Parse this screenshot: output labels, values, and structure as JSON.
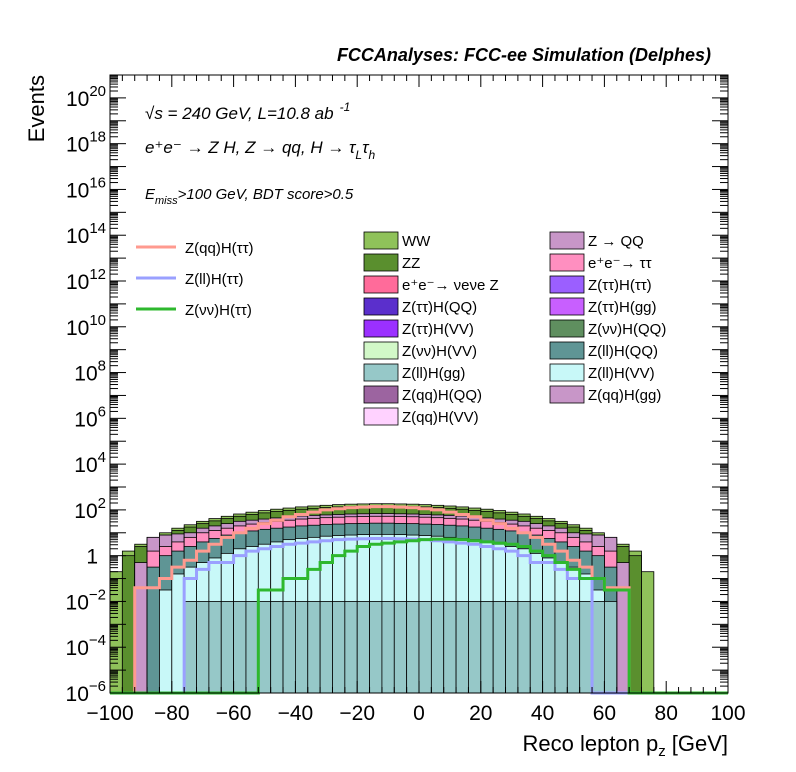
{
  "chart_data": {
    "type": "histogram",
    "title": "FCCAnalyses: FCC-ee Simulation (Delphes)",
    "xlabel": "Reco lepton p",
    "xlabel_sub": "z",
    "xlabel_unit": "[GeV]",
    "ylabel": "Events",
    "xlim": [
      -100,
      100
    ],
    "ylim": [
      1e-06,
      1e+21
    ],
    "y_scale": "log",
    "grid": false,
    "bin_width": 4,
    "x_ticks": [
      {
        "value": -100,
        "label": "−100"
      },
      {
        "value": -80,
        "label": "−80"
      },
      {
        "value": -60,
        "label": "−60"
      },
      {
        "value": -40,
        "label": "−40"
      },
      {
        "value": -20,
        "label": "−20"
      },
      {
        "value": 0,
        "label": "0"
      },
      {
        "value": 20,
        "label": "20"
      },
      {
        "value": 40,
        "label": "40"
      },
      {
        "value": 60,
        "label": "60"
      },
      {
        "value": 80,
        "label": "80"
      },
      {
        "value": 100,
        "label": "100"
      }
    ],
    "y_ticks": [
      {
        "exp": -6,
        "base": "10",
        "sup": "−6"
      },
      {
        "exp": -4,
        "base": "10",
        "sup": "−4"
      },
      {
        "exp": -2,
        "base": "10",
        "sup": "−2"
      },
      {
        "exp": 0,
        "base": "1",
        "sup": ""
      },
      {
        "exp": 2,
        "base": "10",
        "sup": "2"
      },
      {
        "exp": 4,
        "base": "10",
        "sup": "4"
      },
      {
        "exp": 6,
        "base": "10",
        "sup": "6"
      },
      {
        "exp": 8,
        "base": "10",
        "sup": "8"
      },
      {
        "exp": 10,
        "base": "10",
        "sup": "10"
      },
      {
        "exp": 12,
        "base": "10",
        "sup": "12"
      },
      {
        "exp": 14,
        "base": "10",
        "sup": "14"
      },
      {
        "exp": 16,
        "base": "10",
        "sup": "16"
      },
      {
        "exp": 18,
        "base": "10",
        "sup": "18"
      },
      {
        "exp": 20,
        "base": "10",
        "sup": "20"
      }
    ],
    "annotations": {
      "energy": "√s = 240 GeV, L=10.8 ab",
      "energy_sup": "-1",
      "process": "e⁺e⁻ → Z H, Z → qq, H → τ",
      "process_tau_sub": "L",
      "process_tau2": "τ",
      "process_tau2_sub": "h",
      "cut_prefix": "E",
      "cut_sub": "miss",
      "cut_text": ">100 GeV, BDT score>0.5"
    },
    "stacked_backgrounds": [
      {
        "name": "WW",
        "color": "#8fc25a",
        "total_exp": [
          -0.7,
          0.2,
          0.5,
          0.8,
          1.0,
          1.2,
          1.35,
          1.5,
          1.62,
          1.72,
          1.82,
          1.9,
          1.97,
          2.03,
          2.08,
          2.13,
          2.17,
          2.2,
          2.23,
          2.25,
          2.26,
          2.27,
          2.27,
          2.26,
          2.25,
          2.23,
          2.2,
          2.17,
          2.13,
          2.08,
          2.03,
          1.97,
          1.9,
          1.82,
          1.72,
          1.62,
          1.5,
          1.35,
          1.2,
          1.0,
          0.8,
          0.5,
          0.2,
          -0.7,
          -6,
          -6,
          -6,
          -6,
          -6,
          -6
        ]
      },
      {
        "name": "ZZ",
        "color": "#5a8f2e",
        "total_exp": [
          -6,
          0.0,
          0.4,
          0.7,
          0.9,
          1.1,
          1.25,
          1.4,
          1.52,
          1.62,
          1.72,
          1.8,
          1.87,
          1.93,
          1.98,
          2.03,
          2.07,
          2.1,
          2.13,
          2.15,
          2.16,
          2.17,
          2.17,
          2.16,
          2.15,
          2.13,
          2.1,
          2.07,
          2.03,
          1.98,
          1.93,
          1.87,
          1.8,
          1.72,
          1.62,
          1.52,
          1.4,
          1.25,
          1.1,
          0.9,
          0.7,
          0.4,
          0.0,
          -6,
          -6,
          -6,
          -6,
          -6,
          -6,
          -6
        ]
      },
      {
        "name": "Z → QQ",
        "color": "#c896c8",
        "total_exp": [
          -6,
          -6,
          -0.3,
          0.8,
          0.9,
          0.95,
          1.0,
          1.2,
          1.3,
          1.4,
          1.5,
          1.55,
          1.6,
          1.65,
          1.7,
          1.73,
          1.76,
          1.78,
          1.8,
          1.82,
          1.83,
          1.84,
          1.84,
          1.83,
          1.82,
          1.8,
          1.78,
          1.76,
          1.73,
          1.7,
          1.65,
          1.6,
          1.55,
          1.5,
          1.4,
          1.3,
          1.2,
          1.0,
          0.95,
          0.9,
          0.8,
          -0.3,
          -6,
          -6,
          -6,
          -6,
          -6,
          -6,
          -6,
          -6
        ]
      },
      {
        "name": "e⁺e⁻→ ττ",
        "color": "#ff8fc0",
        "total_exp": [
          -6,
          -6,
          -6,
          0.2,
          0.4,
          0.6,
          0.8,
          1.0,
          1.1,
          1.2,
          1.3,
          1.38,
          1.45,
          1.5,
          1.55,
          1.6,
          1.63,
          1.66,
          1.68,
          1.7,
          1.71,
          1.72,
          1.72,
          1.71,
          1.7,
          1.68,
          1.66,
          1.63,
          1.6,
          1.55,
          1.5,
          1.45,
          1.38,
          1.3,
          1.2,
          1.1,
          1.0,
          0.8,
          0.6,
          0.4,
          0.2,
          -6,
          -6,
          -6,
          -6,
          -6,
          -6,
          -6,
          -6,
          -6
        ]
      },
      {
        "name": "e⁺e⁻→ ν_e ν_e Z",
        "color": "#ff6b9a",
        "total_exp": [
          -6,
          -6,
          -6,
          -6,
          -6,
          -6,
          -6,
          -6,
          -6,
          -6,
          -6,
          -6,
          -1.0,
          -1.0,
          -1.0,
          -6,
          -1.0,
          -1.0,
          -1.0,
          -1.0,
          -1.0,
          -1.0,
          -1.0,
          -1.0,
          -1.0,
          -6,
          -1.0,
          -1.0,
          -1.0,
          -1.0,
          -1.0,
          -1.0,
          -6,
          -6,
          -6,
          -6,
          -6,
          -6,
          -6,
          -6,
          -6,
          -6,
          -6,
          -6,
          -6,
          -6,
          -6,
          -6,
          -6,
          -6
        ]
      },
      {
        "name": "Z(ll)H(QQ)",
        "color": "#5f9595",
        "total_exp": [
          -6,
          -6,
          -6,
          -0.5,
          0.0,
          0.2,
          0.4,
          0.6,
          0.75,
          0.9,
          1.0,
          1.08,
          1.15,
          1.2,
          1.25,
          1.3,
          1.33,
          1.36,
          1.38,
          1.4,
          1.41,
          1.42,
          1.42,
          1.41,
          1.4,
          1.38,
          1.36,
          1.33,
          1.3,
          1.25,
          1.2,
          1.15,
          1.08,
          1.0,
          0.9,
          0.75,
          0.6,
          0.4,
          0.2,
          0.0,
          -0.5,
          -6,
          -6,
          -6,
          -6,
          -6,
          -6,
          -6,
          -6,
          -6
        ]
      },
      {
        "name": "Z(ll)H(VV)",
        "color": "#c8f8f8",
        "total_exp": [
          -6,
          -6,
          -6,
          -6,
          -1.5,
          -0.8,
          -0.5,
          -0.3,
          -0.1,
          0.1,
          0.3,
          0.4,
          0.5,
          0.6,
          0.7,
          0.75,
          0.8,
          0.85,
          0.88,
          0.9,
          0.92,
          0.93,
          0.93,
          0.92,
          0.9,
          0.88,
          0.85,
          0.8,
          0.75,
          0.7,
          0.6,
          0.5,
          0.4,
          0.3,
          0.1,
          -0.1,
          -0.3,
          -0.5,
          -0.8,
          -1.5,
          -6,
          -6,
          -6,
          -6,
          -6,
          -6,
          -6,
          -6,
          -6,
          -6
        ]
      },
      {
        "name": "Z(ll)H(gg)",
        "color": "#96c8c8",
        "total_exp": [
          -6,
          -6,
          -6,
          -6,
          -6,
          -6,
          -2.0,
          -2.0,
          -2.0,
          -2.0,
          -2.0,
          -2.0,
          -2.0,
          -2.0,
          -2.0,
          -2.0,
          -2.0,
          -2.0,
          -2.0,
          -2.0,
          -2.0,
          -2.0,
          -2.0,
          -2.0,
          -2.0,
          -2.0,
          -2.0,
          -2.0,
          -2.0,
          -2.0,
          -2.0,
          -2.0,
          -2.0,
          -2.0,
          -2.0,
          -2.0,
          -2.0,
          -2.0,
          -2.0,
          -2.0,
          -2.0,
          -6,
          -6,
          -6,
          -6,
          -6,
          -6,
          -6,
          -6,
          -6
        ]
      }
    ],
    "signal_lines": [
      {
        "name": "Z(qq)H(ττ)",
        "color": "#ff9a8f",
        "exp": [
          -6,
          -6,
          -1.4,
          -1.4,
          -1.0,
          -0.5,
          -0.2,
          0.2,
          0.5,
          0.8,
          1.0,
          1.2,
          1.4,
          1.55,
          1.7,
          1.8,
          1.9,
          2.0,
          2.05,
          2.1,
          2.12,
          2.14,
          2.14,
          2.12,
          2.1,
          2.05,
          2.0,
          1.9,
          1.8,
          1.7,
          1.55,
          1.4,
          1.2,
          1.0,
          0.8,
          0.5,
          0.2,
          -0.2,
          -0.5,
          -1.0,
          -1.4,
          -1.4,
          -6,
          -6,
          -6,
          -6,
          -6,
          -6,
          -6,
          -6
        ]
      },
      {
        "name": "Z(ll)H(ττ)",
        "color": "#9aa0ff",
        "exp": [
          -6,
          -6,
          -6,
          -6,
          -6,
          -6,
          -1.0,
          -0.6,
          -0.3,
          -0.3,
          0.0,
          0.2,
          0.3,
          0.4,
          0.5,
          0.55,
          0.6,
          0.65,
          0.7,
          0.72,
          0.74,
          0.75,
          0.75,
          0.74,
          0.72,
          0.7,
          0.65,
          0.6,
          0.55,
          0.5,
          0.4,
          0.3,
          0.2,
          0.0,
          -0.3,
          -0.3,
          -0.6,
          -1.0,
          -1.0,
          -6,
          -6,
          -6,
          -6,
          -6,
          -6,
          -6,
          -6,
          -6,
          -6,
          -6
        ]
      },
      {
        "name": "Z(νν)H(ττ)",
        "color": "#2eb82e",
        "exp": [
          -6,
          -6,
          -6,
          -6,
          -6,
          -6,
          -6,
          -6,
          -6,
          -6,
          -6,
          -6,
          -1.5,
          -1.5,
          -1.0,
          -1.0,
          -0.6,
          -0.3,
          0.0,
          0.2,
          0.4,
          0.5,
          0.55,
          0.6,
          0.65,
          0.7,
          0.72,
          0.72,
          0.7,
          0.65,
          0.6,
          0.55,
          0.5,
          0.4,
          0.2,
          0.0,
          -0.3,
          -0.6,
          -1.0,
          -1.0,
          -1.5,
          -1.5,
          -6,
          -6,
          -6,
          -6,
          -6,
          -6,
          -6,
          -6
        ]
      }
    ],
    "legend_lines": [
      {
        "label": "Z(qq)H(ττ)",
        "color": "#ff9a8f"
      },
      {
        "label": "Z(ll)H(ττ)",
        "color": "#9aa0ff"
      },
      {
        "label": "Z(νν)H(ττ)",
        "color": "#2eb82e"
      }
    ],
    "legend_fills_col1": [
      {
        "label": "WW",
        "color": "#8fc25a"
      },
      {
        "label": "ZZ",
        "color": "#5a8f2e"
      },
      {
        "label": "e⁺e⁻→ νeνe Z",
        "color": "#ff6b9a"
      },
      {
        "label": "Z(ττ)H(QQ)",
        "color": "#5b2fcc"
      },
      {
        "label": "Z(ττ)H(VV)",
        "color": "#9b30ff"
      },
      {
        "label": "Z(νν)H(VV)",
        "color": "#d2f8c8"
      },
      {
        "label": "Z(ll)H(gg)",
        "color": "#96c8c8"
      },
      {
        "label": "Z(qq)H(QQ)",
        "color": "#9c64a0"
      },
      {
        "label": "Z(qq)H(VV)",
        "color": "#ffd2ff"
      }
    ],
    "legend_fills_col2": [
      {
        "label": "Z → QQ",
        "color": "#c896c8"
      },
      {
        "label": "e⁺e⁻→ ττ",
        "color": "#ff8fc0"
      },
      {
        "label": "Z(ττ)H(ττ)",
        "color": "#9b5fff"
      },
      {
        "label": "Z(ττ)H(gg)",
        "color": "#c85fff"
      },
      {
        "label": "Z(νν)H(QQ)",
        "color": "#5f8f5f"
      },
      {
        "label": "Z(ll)H(QQ)",
        "color": "#5f9595"
      },
      {
        "label": "Z(ll)H(VV)",
        "color": "#c8f8f8"
      },
      {
        "label": "Z(qq)H(gg)",
        "color": "#c896c8"
      }
    ]
  }
}
